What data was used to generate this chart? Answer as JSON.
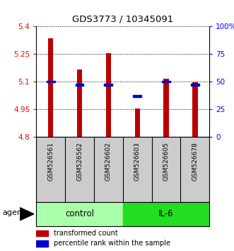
{
  "title": "GDS3773 / 10345091",
  "samples": [
    "GSM526561",
    "GSM526562",
    "GSM526602",
    "GSM526603",
    "GSM526605",
    "GSM526678"
  ],
  "bar_values": [
    5.335,
    5.165,
    5.255,
    4.955,
    5.115,
    5.095
  ],
  "percentile_values": [
    50,
    47,
    47,
    37,
    50,
    47
  ],
  "ylim": [
    4.8,
    5.4
  ],
  "yticks_left": [
    4.8,
    4.95,
    5.1,
    5.25,
    5.4
  ],
  "yticks_right": [
    0,
    25,
    50,
    75,
    100
  ],
  "bar_color": "#BB0000",
  "percentile_color": "#0000CC",
  "groups": [
    {
      "label": "control",
      "indices": [
        0,
        1,
        2
      ],
      "color": "#AAFFAA"
    },
    {
      "label": "IL-6",
      "indices": [
        3,
        4,
        5
      ],
      "color": "#22DD22"
    }
  ],
  "agent_label": "agent",
  "bar_width": 0.18,
  "background_labels": "#CCCCCC"
}
